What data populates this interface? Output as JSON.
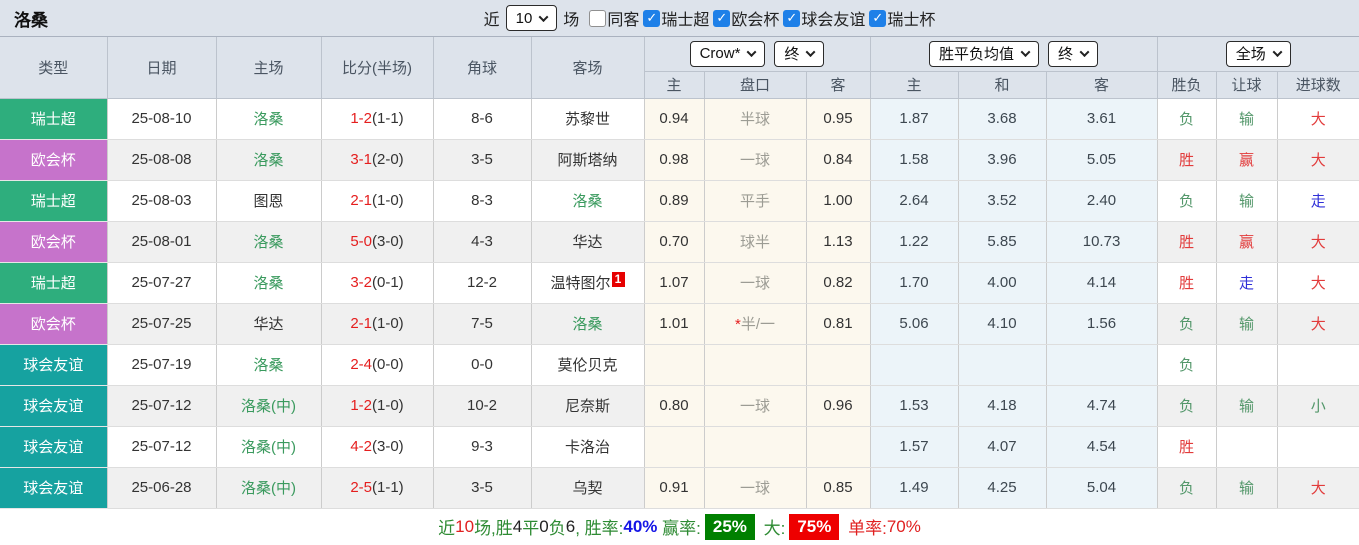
{
  "page": {
    "title": "洛桑"
  },
  "topbar": {
    "near_label": "近",
    "near_value": "10",
    "games_label": "场",
    "filters": [
      {
        "label": "同客",
        "checked": false
      },
      {
        "label": "瑞士超",
        "checked": true
      },
      {
        "label": "欧会杯",
        "checked": true
      },
      {
        "label": "球会友谊",
        "checked": true
      },
      {
        "label": "瑞士杯",
        "checked": true
      }
    ]
  },
  "header": {
    "columns": [
      "类型",
      "日期",
      "主场",
      "比分(半场)",
      "角球",
      "客场"
    ],
    "subcolumns": [
      "主",
      "盘口",
      "客",
      "主",
      "和",
      "客",
      "胜负",
      "让球",
      "进球数"
    ],
    "selects": {
      "odds_company": "Crow*",
      "odds_stage_1": "终",
      "avg_label": "胜平负均值",
      "odds_stage_2": "终",
      "scope": "全场"
    }
  },
  "league_colors": {
    "瑞士超": "#2eae7d",
    "欧会杯": "#c673cb",
    "球会友谊": "#16a2a0"
  },
  "result_colors": {
    "胜": "t-red",
    "负": "t-green",
    "赢": "t-red",
    "输": "t-green",
    "走": "t-blue",
    "大": "t-red",
    "小": "t-green"
  },
  "rows": [
    {
      "type": "瑞士超",
      "date": "25-08-10",
      "home": "洛桑",
      "home_self": true,
      "score": "1-2",
      "half": "(1-1)",
      "corner": "8-6",
      "away": "苏黎世",
      "away_self": false,
      "away_badge": "",
      "odds_home": "0.94",
      "handicap": "半球",
      "handicap_star": false,
      "odds_away": "0.95",
      "avg_home": "1.87",
      "avg_draw": "3.68",
      "avg_away": "3.61",
      "result": "负",
      "handicap_result": "输",
      "goals": "大"
    },
    {
      "type": "欧会杯",
      "date": "25-08-08",
      "home": "洛桑",
      "home_self": true,
      "score": "3-1",
      "half": "(2-0)",
      "corner": "3-5",
      "away": "阿斯塔纳",
      "away_self": false,
      "away_badge": "",
      "odds_home": "0.98",
      "handicap": "一球",
      "handicap_star": false,
      "odds_away": "0.84",
      "avg_home": "1.58",
      "avg_draw": "3.96",
      "avg_away": "5.05",
      "result": "胜",
      "handicap_result": "赢",
      "goals": "大"
    },
    {
      "type": "瑞士超",
      "date": "25-08-03",
      "home": "图恩",
      "home_self": false,
      "score": "2-1",
      "half": "(1-0)",
      "corner": "8-3",
      "away": "洛桑",
      "away_self": true,
      "away_badge": "",
      "odds_home": "0.89",
      "handicap": "平手",
      "handicap_star": false,
      "odds_away": "1.00",
      "avg_home": "2.64",
      "avg_draw": "3.52",
      "avg_away": "2.40",
      "result": "负",
      "handicap_result": "输",
      "goals": "走"
    },
    {
      "type": "欧会杯",
      "date": "25-08-01",
      "home": "洛桑",
      "home_self": true,
      "score": "5-0",
      "half": "(3-0)",
      "corner": "4-3",
      "away": "华达",
      "away_self": false,
      "away_badge": "",
      "odds_home": "0.70",
      "handicap": "球半",
      "handicap_star": false,
      "odds_away": "1.13",
      "avg_home": "1.22",
      "avg_draw": "5.85",
      "avg_away": "10.73",
      "result": "胜",
      "handicap_result": "赢",
      "goals": "大"
    },
    {
      "type": "瑞士超",
      "date": "25-07-27",
      "home": "洛桑",
      "home_self": true,
      "score": "3-2",
      "half": "(0-1)",
      "corner": "12-2",
      "away": "温特图尔",
      "away_self": false,
      "away_badge": "1",
      "odds_home": "1.07",
      "handicap": "一球",
      "handicap_star": false,
      "odds_away": "0.82",
      "avg_home": "1.70",
      "avg_draw": "4.00",
      "avg_away": "4.14",
      "result": "胜",
      "handicap_result": "走",
      "goals": "大"
    },
    {
      "type": "欧会杯",
      "date": "25-07-25",
      "home": "华达",
      "home_self": false,
      "score": "2-1",
      "half": "(1-0)",
      "corner": "7-5",
      "away": "洛桑",
      "away_self": true,
      "away_badge": "",
      "odds_home": "1.01",
      "handicap": "半/一",
      "handicap_star": true,
      "odds_away": "0.81",
      "avg_home": "5.06",
      "avg_draw": "4.10",
      "avg_away": "1.56",
      "result": "负",
      "handicap_result": "输",
      "goals": "大"
    },
    {
      "type": "球会友谊",
      "date": "25-07-19",
      "home": "洛桑",
      "home_self": true,
      "score": "2-4",
      "half": "(0-0)",
      "corner": "0-0",
      "away": "莫伦贝克",
      "away_self": false,
      "away_badge": "",
      "odds_home": "",
      "handicap": "",
      "handicap_star": false,
      "odds_away": "",
      "avg_home": "",
      "avg_draw": "",
      "avg_away": "",
      "result": "负",
      "handicap_result": "",
      "goals": ""
    },
    {
      "type": "球会友谊",
      "date": "25-07-12",
      "home": "洛桑(中)",
      "home_self": true,
      "score": "1-2",
      "half": "(1-0)",
      "corner": "10-2",
      "away": "尼奈斯",
      "away_self": false,
      "away_badge": "",
      "odds_home": "0.80",
      "handicap": "一球",
      "handicap_star": false,
      "odds_away": "0.96",
      "avg_home": "1.53",
      "avg_draw": "4.18",
      "avg_away": "4.74",
      "result": "负",
      "handicap_result": "输",
      "goals": "小"
    },
    {
      "type": "球会友谊",
      "date": "25-07-12",
      "home": "洛桑(中)",
      "home_self": true,
      "score": "4-2",
      "half": "(3-0)",
      "corner": "9-3",
      "away": "卡洛治",
      "away_self": false,
      "away_badge": "",
      "odds_home": "",
      "handicap": "",
      "handicap_star": false,
      "odds_away": "",
      "avg_home": "1.57",
      "avg_draw": "4.07",
      "avg_away": "4.54",
      "result": "胜",
      "handicap_result": "",
      "goals": ""
    },
    {
      "type": "球会友谊",
      "date": "25-06-28",
      "home": "洛桑(中)",
      "home_self": true,
      "score": "2-5",
      "half": "(1-1)",
      "corner": "3-5",
      "away": "乌契",
      "away_self": false,
      "away_badge": "",
      "odds_home": "0.91",
      "handicap": "一球",
      "handicap_star": false,
      "odds_away": "0.85",
      "avg_home": "1.49",
      "avg_draw": "4.25",
      "avg_away": "5.04",
      "result": "负",
      "handicap_result": "输",
      "goals": "大"
    }
  ],
  "summary": {
    "segments": [
      {
        "text": "近",
        "style": "s-green"
      },
      {
        "text": "10",
        "style": "s-red"
      },
      {
        "text": "场,胜",
        "style": "s-green"
      },
      {
        "text": "4",
        "style": "s-dark"
      },
      {
        "text": "平",
        "style": "s-green"
      },
      {
        "text": "0",
        "style": "s-dark"
      },
      {
        "text": "负",
        "style": "s-green"
      },
      {
        "text": "6",
        "style": "s-dark"
      },
      {
        "text": ", 胜率:",
        "style": "s-green"
      },
      {
        "text": "40%",
        "style": "s-blue"
      },
      {
        "text": " 赢率:",
        "style": "s-green"
      },
      {
        "text": "25%",
        "style": "s-box-green"
      },
      {
        "text": " 大:",
        "style": "s-green"
      },
      {
        "text": "75%",
        "style": "s-box-red"
      },
      {
        "text": " 单率:",
        "style": "s-red"
      },
      {
        "text": "70%",
        "style": "s-red"
      }
    ]
  }
}
